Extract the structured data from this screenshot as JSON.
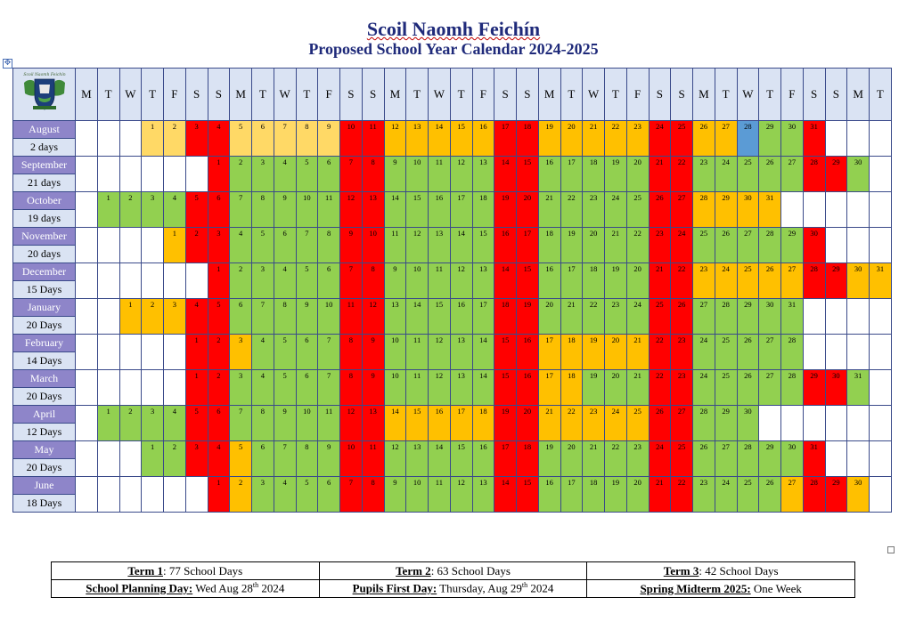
{
  "header": {
    "school_name": "Scoil Naomh Feichín",
    "subtitle": "Proposed School Year Calendar 2024-2025"
  },
  "colors": {
    "school_day": "#92d050",
    "weekend": "#ff0000",
    "holiday": "#ffc000",
    "pre_term": "#ffd966",
    "planning_day": "#5b9bd5"
  },
  "logo": {
    "icon": "school-crest-icon",
    "motto": "Scoil Naomh Feichín"
  },
  "weekday_headers": [
    "M",
    "T",
    "W",
    "T",
    "F",
    "S",
    "S",
    "M",
    "T",
    "W",
    "T",
    "F",
    "S",
    "S",
    "M",
    "T",
    "W",
    "T",
    "F",
    "S",
    "S",
    "M",
    "T",
    "W",
    "T",
    "F",
    "S",
    "S",
    "M",
    "T",
    "W",
    "T",
    "F",
    "S",
    "S",
    "M",
    "T"
  ],
  "months": [
    {
      "name": "August",
      "days_label": "2  days",
      "offset": 3,
      "length": 31,
      "holidays": [
        12,
        13,
        14,
        15,
        16,
        19,
        20,
        21,
        22,
        23,
        26,
        27
      ],
      "pre_term": [
        1,
        2,
        5,
        6,
        7,
        8,
        9
      ],
      "planning": [
        28
      ]
    },
    {
      "name": "September",
      "days_label": "21 days",
      "offset": 6,
      "length": 30,
      "holidays": [],
      "pre_term": [],
      "planning": []
    },
    {
      "name": "October",
      "days_label": "19 days",
      "offset": 1,
      "length": 31,
      "holidays": [
        28,
        29,
        30,
        31
      ],
      "pre_term": [],
      "planning": []
    },
    {
      "name": "November",
      "days_label": "20 days",
      "offset": 4,
      "length": 30,
      "holidays": [
        1
      ],
      "pre_term": [],
      "planning": []
    },
    {
      "name": "December",
      "days_label": "15 Days",
      "offset": 6,
      "length": 31,
      "holidays": [
        23,
        24,
        25,
        26,
        27,
        30,
        31
      ],
      "pre_term": [],
      "planning": []
    },
    {
      "name": "January",
      "days_label": "20 Days",
      "offset": 2,
      "length": 31,
      "holidays": [
        1,
        2,
        3
      ],
      "pre_term": [],
      "planning": []
    },
    {
      "name": "February",
      "days_label": "14 Days",
      "offset": 5,
      "length": 28,
      "holidays": [
        3,
        17,
        18,
        19,
        20,
        21
      ],
      "pre_term": [],
      "planning": []
    },
    {
      "name": "March",
      "days_label": "20 Days",
      "offset": 5,
      "length": 31,
      "holidays": [
        17,
        18
      ],
      "pre_term": [],
      "planning": []
    },
    {
      "name": "April",
      "days_label": "12 Days",
      "offset": 1,
      "length": 30,
      "holidays": [
        14,
        15,
        16,
        17,
        18,
        21,
        22,
        23,
        24,
        25
      ],
      "pre_term": [],
      "planning": []
    },
    {
      "name": "May",
      "days_label": "20 Days",
      "offset": 3,
      "length": 31,
      "holidays": [
        5
      ],
      "pre_term": [],
      "planning": []
    },
    {
      "name": "June",
      "days_label": "18 Days",
      "offset": 6,
      "length": 30,
      "holidays": [
        2,
        27,
        30
      ],
      "pre_term": [],
      "planning": []
    }
  ],
  "footer": {
    "term1_label": "Term 1",
    "term1_value": ":  77 School Days",
    "term2_label": "Term 2",
    "term2_value": ": 63 School Days",
    "term3_label": "Term 3",
    "term3_value": ": 42 School Days",
    "planning_label": "School Planning Day:",
    "planning_value": " Wed Aug 28",
    "planning_sup": "th",
    "planning_year": " 2024",
    "first_day_label": "Pupils First Day:",
    "first_day_value": " Thursday,  Aug 29",
    "first_day_sup": "th",
    "first_day_year": " 2024",
    "midterm_label": "Spring Midterm  2025:",
    "midterm_value": " One Week"
  }
}
